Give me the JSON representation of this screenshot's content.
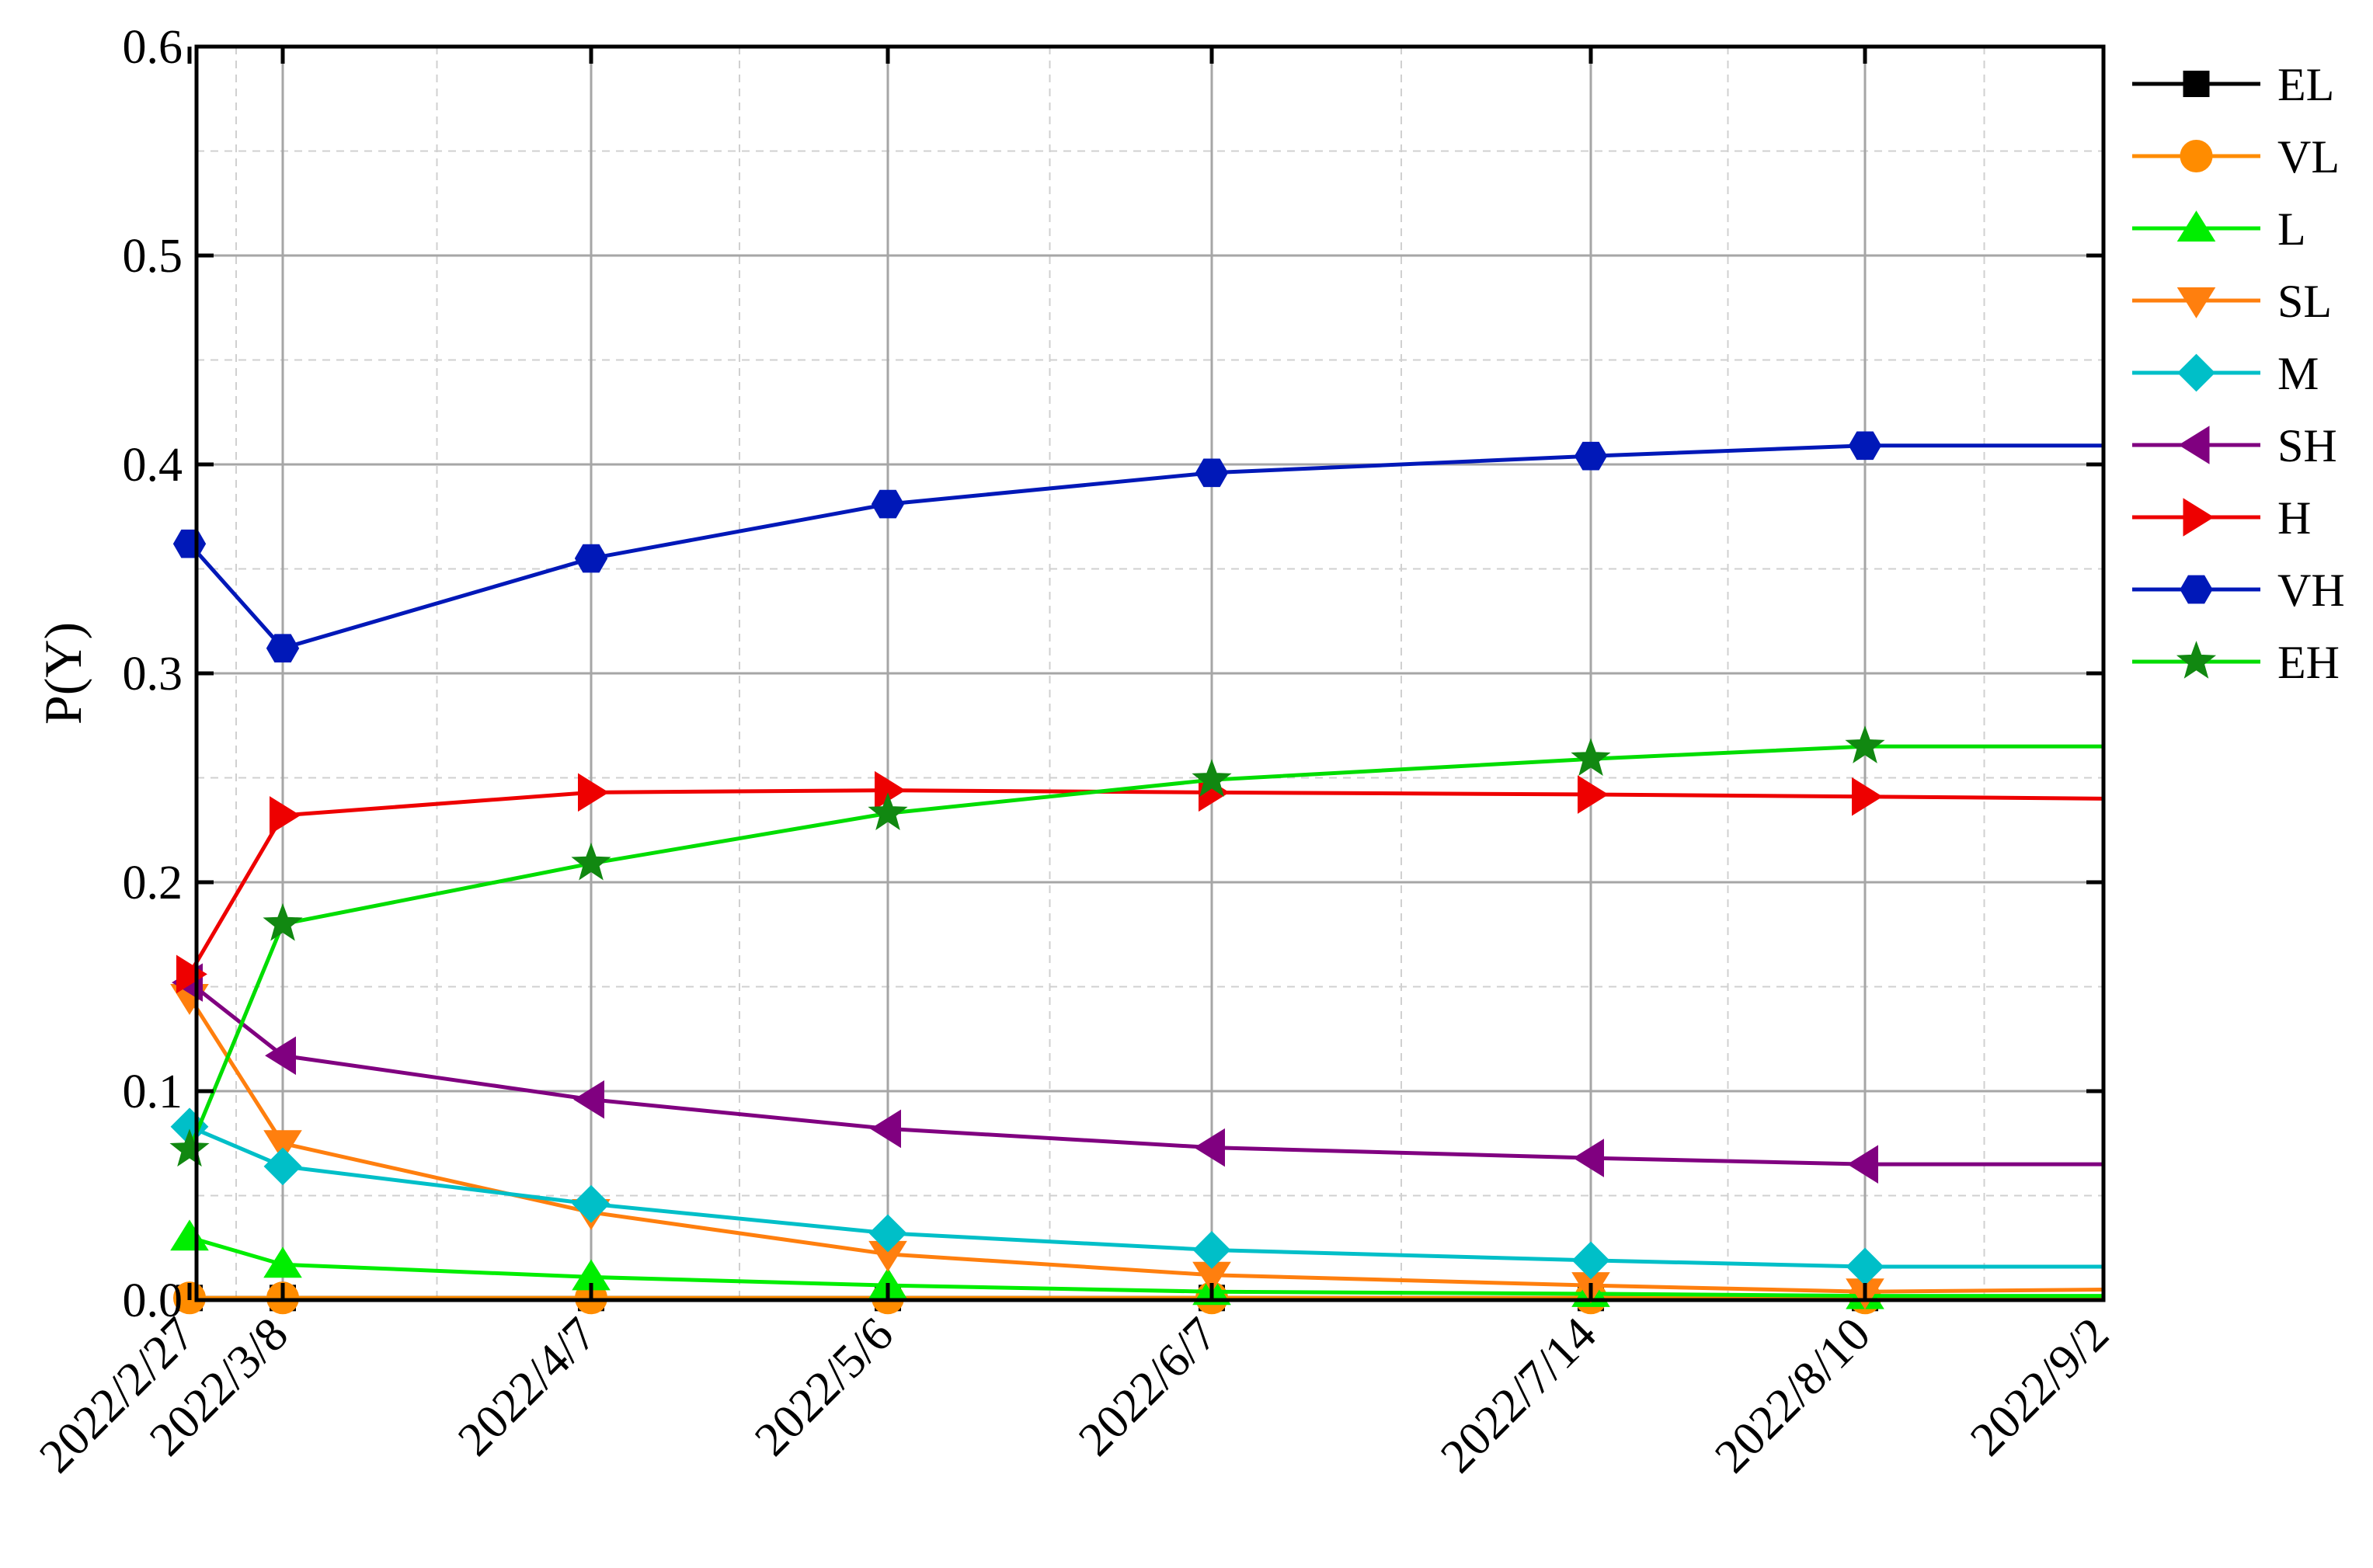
{
  "chart_data": {
    "type": "line",
    "title": "",
    "xlabel": "",
    "ylabel": "P(Y)",
    "x": [
      "2022/2/27",
      "2022/3/8",
      "2022/4/7",
      "2022/5/6",
      "2022/6/7",
      "2022/7/14",
      "2022/8/10",
      "2022/9/2"
    ],
    "marker_x": [
      "2022/2/27",
      "2022/3/8",
      "2022/4/7",
      "2022/5/6",
      "2022/6/7",
      "2022/7/14",
      "2022/8/10"
    ],
    "ylim": [
      0,
      0.6
    ],
    "yticks": [
      "0.0",
      "0.1",
      "0.2",
      "0.3",
      "0.4",
      "0.5",
      "0.6"
    ],
    "grid": true,
    "legend_position": "right",
    "series": [
      {
        "name": "EL",
        "color": "#000000",
        "marker": "square",
        "values": [
          0.001,
          0.001,
          0.001,
          0.001,
          0.001,
          0.001,
          0.001,
          0.001
        ]
      },
      {
        "name": "VL",
        "color": "#FF8C00",
        "marker": "circle",
        "values": [
          0.001,
          0.001,
          0.001,
          0.001,
          0.001,
          0.001,
          0.001,
          0.001
        ]
      },
      {
        "name": "L",
        "color": "#00EE00",
        "marker": "triangle-up",
        "values": [
          0.03,
          0.017,
          0.011,
          0.007,
          0.004,
          0.003,
          0.002,
          0.002
        ]
      },
      {
        "name": "SL",
        "color": "#FF7F0E",
        "marker": "triangle-down",
        "values": [
          0.145,
          0.075,
          0.042,
          0.022,
          0.012,
          0.007,
          0.004,
          0.005
        ]
      },
      {
        "name": "M",
        "color": "#00BFC8",
        "marker": "diamond",
        "values": [
          0.083,
          0.064,
          0.046,
          0.032,
          0.024,
          0.019,
          0.016,
          0.016
        ]
      },
      {
        "name": "SH",
        "color": "#800080",
        "marker": "triangle-left",
        "values": [
          0.152,
          0.117,
          0.096,
          0.082,
          0.073,
          0.068,
          0.065,
          0.065
        ]
      },
      {
        "name": "H",
        "color": "#EE0000",
        "marker": "triangle-right",
        "values": [
          0.156,
          0.232,
          0.243,
          0.244,
          0.243,
          0.242,
          0.241,
          0.24
        ]
      },
      {
        "name": "VH",
        "color": "#0018B8",
        "marker": "hexagon",
        "values": [
          0.362,
          0.312,
          0.355,
          0.381,
          0.396,
          0.404,
          0.409,
          0.409
        ]
      },
      {
        "name": "EH",
        "color": "#00DD00",
        "marker_color": "#118811",
        "marker": "star",
        "values": [
          0.072,
          0.18,
          0.209,
          0.233,
          0.249,
          0.259,
          0.265,
          0.265
        ]
      }
    ]
  }
}
